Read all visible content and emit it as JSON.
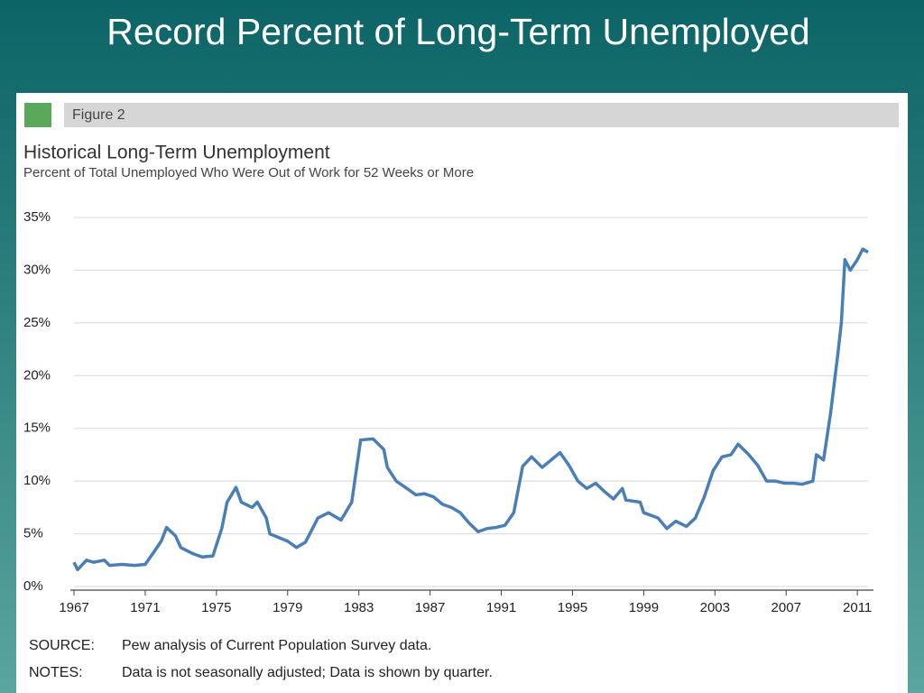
{
  "chart_data": {
    "type": "line",
    "slide_title": "Record Percent of Long-Term Unemployed",
    "figure_label": "Figure 2",
    "title": "Historical Long-Term Unemployment",
    "subtitle": "Percent of Total Unemployed Who Were Out of Work for 52 Weeks or More",
    "source_label": "SOURCE:",
    "source": "Pew analysis of Current Population Survey data.",
    "notes_label": "NOTES:",
    "notes": "Data is not seasonally adjusted; Data is shown by quarter.",
    "x": [
      1967,
      1967.2,
      1967.7,
      1968.1,
      1968.7,
      1969,
      1969.7,
      1970.4,
      1971,
      1971.5,
      1971.9,
      1972.2,
      1972.7,
      1973,
      1973.7,
      1974.2,
      1974.8,
      1975.3,
      1975.6,
      1976.1,
      1976.4,
      1977,
      1977.3,
      1977.8,
      1978,
      1979,
      1979.5,
      1980,
      1980.7,
      1981.3,
      1982,
      1982.6,
      1983.1,
      1983.8,
      1984.4,
      1984.6,
      1985.1,
      1985.7,
      1986.2,
      1986.7,
      1987.2,
      1987.7,
      1988.2,
      1988.7,
      1989.2,
      1989.7,
      1990.2,
      1990.7,
      1991.2,
      1991.7,
      1992.2,
      1992.7,
      1993.3,
      1993.8,
      1994.3,
      1994.8,
      1995.3,
      1995.8,
      1996.3,
      1996.8,
      1997.3,
      1997.8,
      1998,
      1998.8,
      1999,
      1999.8,
      2000.3,
      2000.8,
      2001.4,
      2001.9,
      2002.4,
      2002.9,
      2003.4,
      2003.9,
      2004.3,
      2004.9,
      2005.4,
      2005.9,
      2006.4,
      2006.9,
      2007.4,
      2007.9,
      2008.5,
      2008.7,
      2009.1,
      2009.5,
      2009.9,
      2010.1,
      2010.3,
      2010.6,
      2011,
      2011.3,
      2011.6
    ],
    "series": [
      {
        "name": "Long-term unemployed share",
        "color": "#4a7fb5",
        "values": [
          2.3,
          1.6,
          2.5,
          2.3,
          2.5,
          2.0,
          2.1,
          2.0,
          2.1,
          3.3,
          4.3,
          5.6,
          4.8,
          3.7,
          3.1,
          2.8,
          2.9,
          5.5,
          8.0,
          9.4,
          8.0,
          7.5,
          8.0,
          6.5,
          5.0,
          4.3,
          3.7,
          4.2,
          6.5,
          7.0,
          6.3,
          8.0,
          13.9,
          14.0,
          13.0,
          11.3,
          10.0,
          9.3,
          8.7,
          8.8,
          8.5,
          7.8,
          7.5,
          7.0,
          6.0,
          5.2,
          5.5,
          5.6,
          5.8,
          7.0,
          11.4,
          12.3,
          11.3,
          12.0,
          12.7,
          11.5,
          10.0,
          9.3,
          9.8,
          9.0,
          8.3,
          9.3,
          8.2,
          8.0,
          7.0,
          6.5,
          5.5,
          6.2,
          5.7,
          6.5,
          8.5,
          11.0,
          12.3,
          12.5,
          13.5,
          12.5,
          11.5,
          10.0,
          10.0,
          9.8,
          9.8,
          9.7,
          10.0,
          12.5,
          12.0,
          16.5,
          22.0,
          25.0,
          31.0,
          30.0,
          31.0,
          32.0,
          31.7
        ]
      }
    ],
    "xlim": [
      1967,
      2011.6
    ],
    "xticks": [
      1967,
      1971,
      1975,
      1979,
      1983,
      1987,
      1991,
      1995,
      1999,
      2003,
      2007,
      2011
    ],
    "ylim": [
      0,
      35
    ],
    "yticks": [
      {
        "value": 0,
        "label": "0%"
      },
      {
        "value": 5,
        "label": "5%"
      },
      {
        "value": 10,
        "label": "10%"
      },
      {
        "value": 15,
        "label": "15%"
      },
      {
        "value": 20,
        "label": "20%"
      },
      {
        "value": 25,
        "label": "25%"
      },
      {
        "value": 30,
        "label": "30%"
      },
      {
        "value": 35,
        "label": "35%"
      }
    ],
    "grid": true
  }
}
